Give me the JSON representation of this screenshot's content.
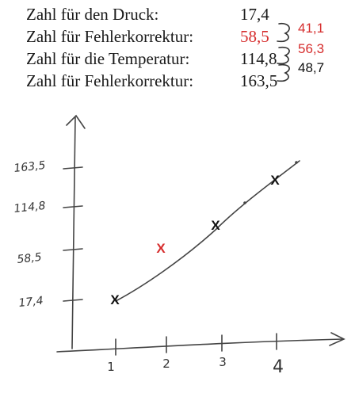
{
  "rows": [
    {
      "label": "Zahl für den Druck:",
      "value": "17,4"
    },
    {
      "label": "Zahl für Fehlerkorrektur:",
      "value": "58,5",
      "value_color": "#d62d2d"
    },
    {
      "label": "Zahl für die Temperatur:",
      "value": "114,8"
    },
    {
      "label": "Zahl für Fehlerkorrektur:",
      "value": "163,5"
    }
  ],
  "differences": [
    {
      "value": "41,1",
      "color": "#d62d2d"
    },
    {
      "value": "56,3",
      "color": "#d62d2d"
    },
    {
      "value": "48,7",
      "color": "#111111"
    }
  ],
  "graph": {
    "x_ticks": [
      "1",
      "2",
      "3",
      "4"
    ],
    "y_ticks": [
      "17,4",
      "58,5",
      "114,8",
      "163,5"
    ],
    "points": [
      {
        "x": 1,
        "y": 17.4,
        "label": "X",
        "color": "#111111"
      },
      {
        "x": 2,
        "y": 58.5,
        "label": "X",
        "color": "#d62d2d"
      },
      {
        "x": 3,
        "y": 114.8,
        "label": "X",
        "color": "#111111"
      },
      {
        "x": 4,
        "y": 163.5,
        "label": "X",
        "color": "#111111"
      }
    ]
  }
}
